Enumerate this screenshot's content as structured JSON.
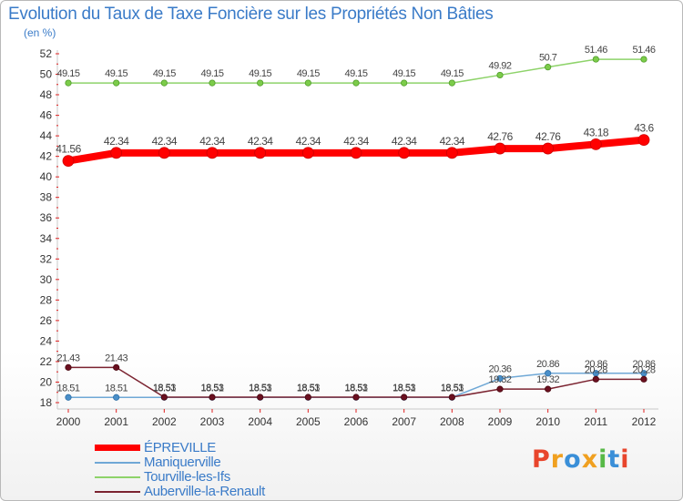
{
  "title": "Evolution du Taux de Taxe Foncière sur les Propriétés Non Bâties",
  "unit_label": "(en %)",
  "logo": {
    "text": "Proxiti",
    "letters": [
      {
        "ch": "P",
        "color": "#e8452c"
      },
      {
        "ch": "r",
        "color": "#f0a020"
      },
      {
        "ch": "o",
        "color": "#3a8fd8"
      },
      {
        "ch": "x",
        "color": "#f0a020"
      },
      {
        "ch": "i",
        "color": "#57b947"
      },
      {
        "ch": "t",
        "color": "#3a8fd8"
      },
      {
        "ch": "i",
        "color": "#e8452c"
      }
    ]
  },
  "chart_data": {
    "type": "line",
    "title": "Evolution du Taux de Taxe Foncière sur les Propriétés Non Bâties",
    "ylabel": "(en %)",
    "x": [
      "2000",
      "2001",
      "2002",
      "2003",
      "2004",
      "2005",
      "2006",
      "2007",
      "2008",
      "2009",
      "2010",
      "2011",
      "2012"
    ],
    "ylim": [
      18,
      52
    ],
    "yticks": [
      "18",
      "20",
      "22",
      "24",
      "26",
      "28",
      "30",
      "32",
      "34",
      "36",
      "38",
      "40",
      "42",
      "44",
      "46",
      "48",
      "50",
      "52"
    ],
    "grid": false,
    "legend_position": "bottom-left",
    "series": [
      {
        "name": "ÉPREVILLE",
        "color": "#ff0000",
        "values": [
          41.56,
          42.34,
          42.34,
          42.34,
          42.34,
          42.34,
          42.34,
          42.34,
          42.34,
          42.76,
          42.76,
          43.18,
          43.6
        ],
        "labels": [
          "41.56",
          "42.34",
          "42.34",
          "42.34",
          "42.34",
          "42.34",
          "42.34",
          "42.34",
          "42.34",
          "42.76",
          "42.76",
          "43.18",
          "43.6"
        ]
      },
      {
        "name": "Maniquerville",
        "color": "#6fa8d6",
        "values": [
          18.51,
          18.51,
          18.51,
          18.51,
          18.51,
          18.51,
          18.51,
          18.51,
          18.51,
          20.36,
          20.86,
          20.86,
          20.86
        ],
        "labels": [
          "18.51",
          "18.51",
          "18.51",
          "18.51",
          "18.51",
          "18.51",
          "18.51",
          "18.51",
          "18.51",
          "20.36",
          "20.86",
          "20.86",
          "20.86"
        ]
      },
      {
        "name": "Tourville-les-Ifs",
        "color": "#8ed36a",
        "values": [
          49.15,
          49.15,
          49.15,
          49.15,
          49.15,
          49.15,
          49.15,
          49.15,
          49.15,
          49.92,
          50.7,
          51.46,
          51.46
        ],
        "labels": [
          "49.15",
          "49.15",
          "49.15",
          "49.15",
          "49.15",
          "49.15",
          "49.15",
          "49.15",
          "49.15",
          "49.92",
          "50.7",
          "51.46",
          "51.46"
        ]
      },
      {
        "name": "Auberville-la-Renault",
        "color": "#7b2330",
        "values": [
          21.43,
          21.43,
          18.53,
          18.53,
          18.53,
          18.53,
          18.53,
          18.53,
          18.53,
          19.32,
          19.32,
          20.28,
          20.28
        ],
        "labels": [
          "21.43",
          "21.43",
          "18.53",
          "18.53",
          "18.53",
          "18.53",
          "18.53",
          "18.53",
          "18.53",
          "19.32",
          "19.32",
          "20.28",
          "20.28"
        ]
      }
    ]
  }
}
